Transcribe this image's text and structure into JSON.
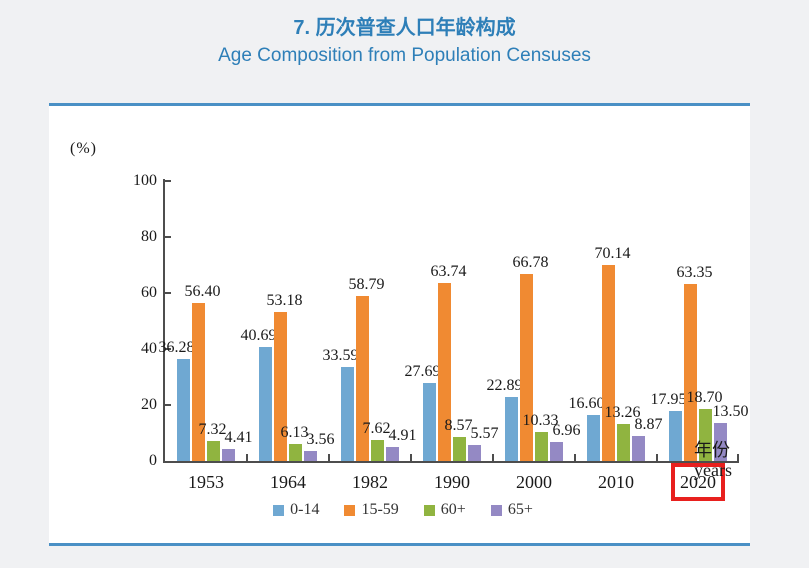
{
  "header": {
    "title_cn": "7. 历次普查人口年龄构成",
    "title_en": "Age Composition from Population Censuses",
    "title_color": "#2e7fb8"
  },
  "chart_data": {
    "type": "bar",
    "title": "7. 历次普查人口年龄构成 / Age Composition from Population Censuses",
    "unit_label": "(%)",
    "xlabel_cn": "年份",
    "xlabel_en": "years",
    "ylabel": "(%)",
    "ylim": [
      0,
      100
    ],
    "y_ticks": [
      0,
      20,
      40,
      60,
      80,
      100
    ],
    "grid": false,
    "legend_position": "bottom",
    "categories": [
      "1953",
      "1964",
      "1982",
      "1990",
      "2000",
      "2010",
      "2020"
    ],
    "highlighted_category": "2020",
    "highlight_color": "#e8201e",
    "series": [
      {
        "name": "0-14",
        "color": "#6fa8d2",
        "values": [
          36.28,
          40.69,
          33.59,
          27.69,
          22.89,
          16.6,
          17.95
        ]
      },
      {
        "name": "15-59",
        "color": "#f08a32",
        "values": [
          56.4,
          53.18,
          58.79,
          63.74,
          66.78,
          70.14,
          63.35
        ]
      },
      {
        "name": "60+",
        "color": "#90b440",
        "values": [
          7.32,
          6.13,
          7.62,
          8.57,
          10.33,
          13.26,
          18.7
        ]
      },
      {
        "name": "65+",
        "color": "#9489c4",
        "values": [
          4.41,
          3.56,
          4.91,
          5.57,
          6.96,
          8.87,
          13.5
        ]
      }
    ]
  }
}
